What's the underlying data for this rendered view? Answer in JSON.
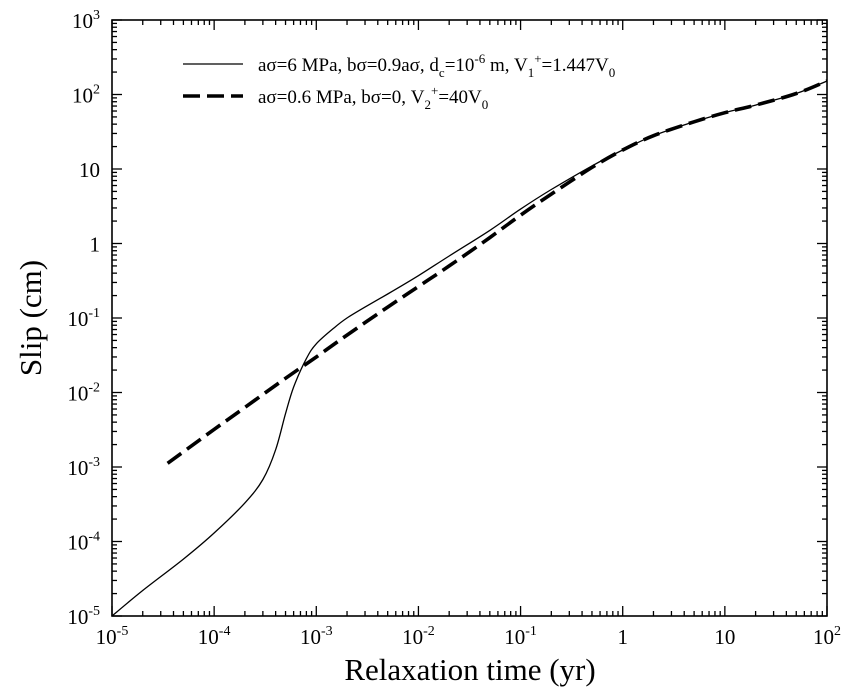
{
  "chart_data": {
    "type": "line",
    "xlabel": "Relaxation time (yr)",
    "ylabel": "Slip (cm)",
    "xscale": "log",
    "yscale": "log",
    "xlim": [
      1e-05,
      100
    ],
    "ylim": [
      1e-05,
      1000
    ],
    "grid": false,
    "legend_position": "top-right",
    "x_ticks": [
      {
        "value": 1e-05,
        "base": "10",
        "exp": "-5"
      },
      {
        "value": 0.0001,
        "base": "10",
        "exp": "-4"
      },
      {
        "value": 0.001,
        "base": "10",
        "exp": "-3"
      },
      {
        "value": 0.01,
        "base": "10",
        "exp": "-2"
      },
      {
        "value": 0.1,
        "base": "10",
        "exp": "-1"
      },
      {
        "value": 1,
        "base": "1",
        "exp": ""
      },
      {
        "value": 10,
        "base": "10",
        "exp": ""
      },
      {
        "value": 100,
        "base": "10",
        "exp": "2"
      }
    ],
    "y_ticks": [
      {
        "value": 1e-05,
        "base": "10",
        "exp": "-5"
      },
      {
        "value": 0.0001,
        "base": "10",
        "exp": "-4"
      },
      {
        "value": 0.001,
        "base": "10",
        "exp": "-3"
      },
      {
        "value": 0.01,
        "base": "10",
        "exp": "-2"
      },
      {
        "value": 0.1,
        "base": "10",
        "exp": "-1"
      },
      {
        "value": 1,
        "base": "1",
        "exp": ""
      },
      {
        "value": 10,
        "base": "10",
        "exp": ""
      },
      {
        "value": 100,
        "base": "10",
        "exp": "2"
      },
      {
        "value": 1000,
        "base": "10",
        "exp": "3"
      }
    ],
    "series": [
      {
        "name": "aσ=6 MPa, bσ=0.9aσ, d_c=10^-6 m, V_1^+=1.447V_0",
        "style": "solid",
        "color": "#000000",
        "x": [
          1e-05,
          2e-05,
          5e-05,
          0.0001,
          0.0002,
          0.0003,
          0.0004,
          0.0005,
          0.0006,
          0.0008,
          0.001,
          0.0015,
          0.002,
          0.003,
          0.005,
          0.01,
          0.02,
          0.05,
          0.1,
          0.2,
          0.5,
          1,
          2,
          5,
          10,
          20,
          50,
          100
        ],
        "y": [
          1e-05,
          2.2e-05,
          5.8e-05,
          0.00013,
          0.00033,
          0.00068,
          0.0017,
          0.0052,
          0.0118,
          0.0285,
          0.045,
          0.074,
          0.1,
          0.14,
          0.21,
          0.37,
          0.68,
          1.5,
          2.9,
          5.3,
          11,
          18,
          28,
          43,
          57,
          72,
          103,
          152
        ]
      },
      {
        "name": "aσ=0.6 MPa, bσ=0, V_2^+=40V_0",
        "style": "dashed",
        "color": "#000000",
        "x": [
          3.5e-05,
          5e-05,
          0.0001,
          0.0002,
          0.0005,
          0.001,
          0.002,
          0.005,
          0.01,
          0.02,
          0.05,
          0.1,
          0.2,
          0.5,
          1,
          2,
          5,
          10,
          20,
          50,
          100
        ],
        "y": [
          0.00112,
          0.0016,
          0.0032,
          0.0063,
          0.0155,
          0.03,
          0.059,
          0.14,
          0.265,
          0.5,
          1.2,
          2.4,
          4.6,
          10.5,
          18,
          28,
          43,
          57,
          72,
          103,
          152
        ]
      }
    ],
    "legend": {
      "entries": [
        {
          "style": "solid",
          "parts": [
            [
              "n",
              "aσ=6 MPa, bσ=0.9aσ, d"
            ],
            [
              "sub",
              "c"
            ],
            [
              "n",
              "=10"
            ],
            [
              "sup",
              "-6"
            ],
            [
              "n",
              " m, V"
            ],
            [
              "sub",
              "1"
            ],
            [
              "sup",
              "+"
            ],
            [
              "n",
              "=1.447V"
            ],
            [
              "sub",
              "0"
            ]
          ]
        },
        {
          "style": "dashed",
          "parts": [
            [
              "n",
              "aσ=0.6 MPa, bσ=0, V"
            ],
            [
              "sub",
              "2"
            ],
            [
              "sup",
              "+"
            ],
            [
              "n",
              "=40V"
            ],
            [
              "sub",
              "0"
            ]
          ]
        }
      ]
    }
  }
}
